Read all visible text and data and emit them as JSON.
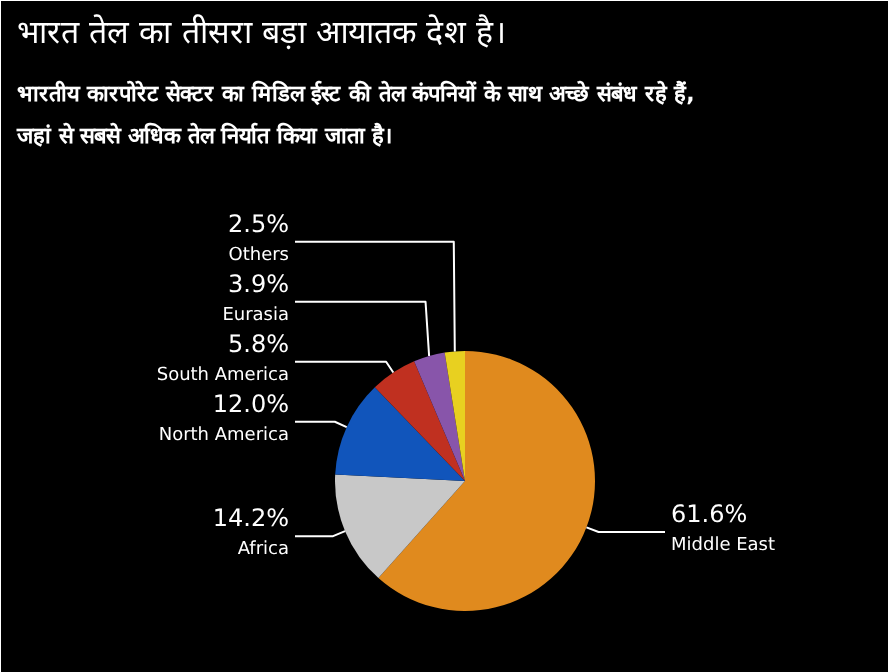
{
  "chart_data": {
    "type": "pie",
    "title": "भारत तेल का तीसरा बड़ा आयातक देश है।",
    "subtitle": "भारतीय कारपोरेट सेक्टर का मिडिल ईस्ट की तेल कंपनियों के साथ अच्छे संबंध रहे हैं,\nजहां से सबसे अधिक तेल निर्यात किया जाता  है।",
    "categories": [
      "Middle East",
      "Africa",
      "North America",
      "South America",
      "Eurasia",
      "Others"
    ],
    "values": [
      61.6,
      14.2,
      12.0,
      5.8,
      3.9,
      2.5
    ],
    "colors": [
      "#e08a1e",
      "#c8c8c8",
      "#1155bb",
      "#c03020",
      "#8855aa",
      "#e8d020"
    ],
    "value_labels": [
      "61.6%",
      "14.2%",
      "12.0%",
      "5.8%",
      "3.9%",
      "2.5%"
    ]
  }
}
